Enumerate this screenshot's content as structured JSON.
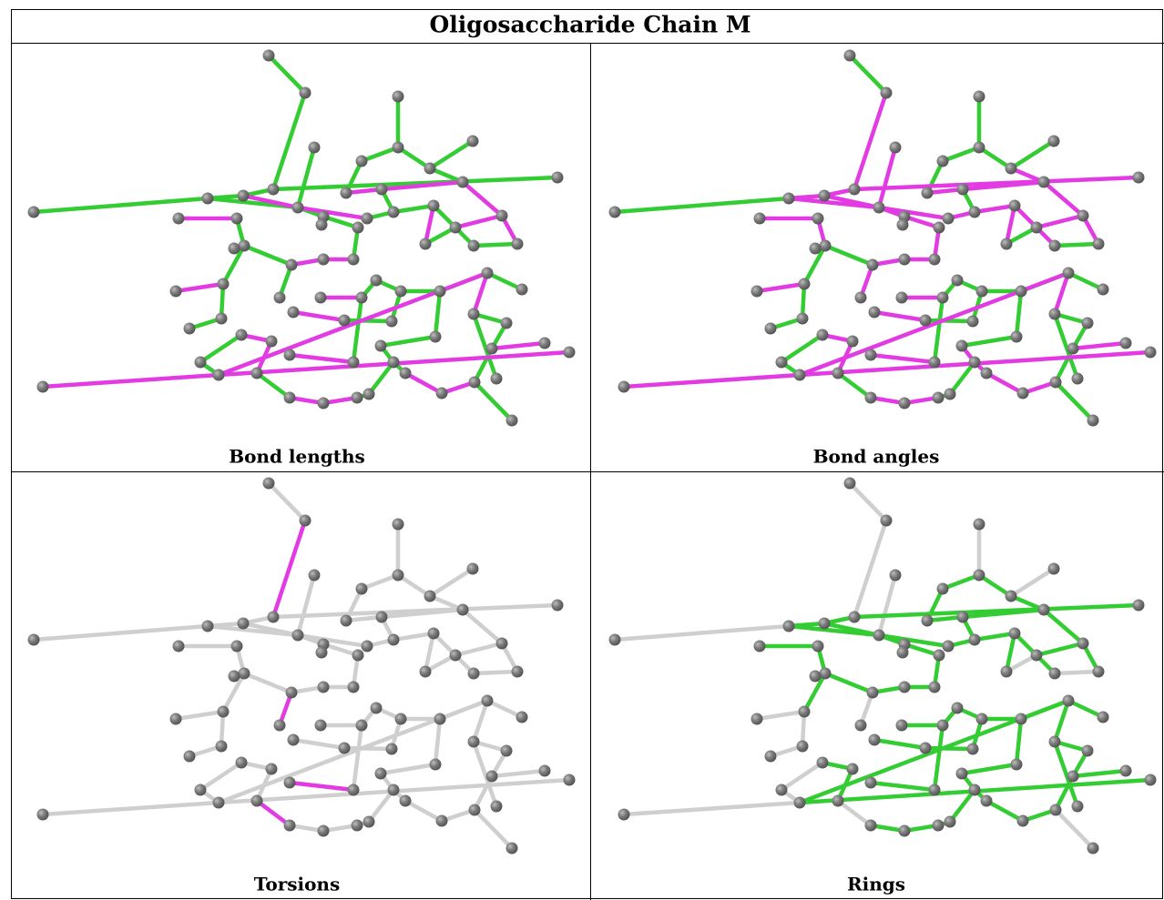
{
  "header": {
    "title": "Oligosaccharide Chain M"
  },
  "panels": [
    {
      "caption": "Bond lengths"
    },
    {
      "caption": "Bond angles"
    },
    {
      "caption": "Torsions"
    },
    {
      "caption": "Rings"
    }
  ]
}
